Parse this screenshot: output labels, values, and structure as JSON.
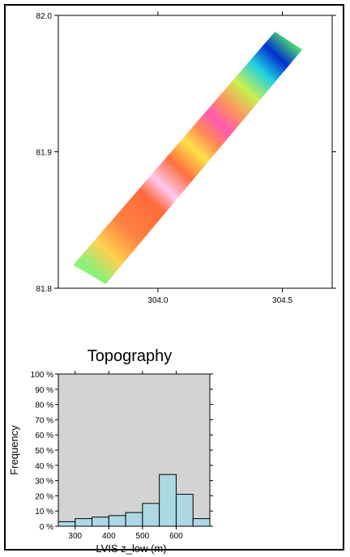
{
  "chart_data": [
    {
      "type": "heatmap",
      "title": "",
      "xlabel": "",
      "ylabel": "",
      "xlim": [
        303.6,
        304.7
      ],
      "ylim": [
        81.8,
        82.0
      ],
      "xticks": [
        304.0,
        304.5
      ],
      "xtick_labels": [
        "304.0",
        "304.5"
      ],
      "yticks": [
        81.8,
        81.9,
        82.0
      ],
      "ytick_labels": [
        "81.8",
        "81.9",
        "82.0"
      ],
      "grid": false,
      "colormap": [
        "#ff55aa",
        "#ffc0f0",
        "#ff8a3d",
        "#ffe23d",
        "#7cf25a",
        "#30e0d0",
        "#2060ff",
        "#0010a0"
      ],
      "swath": {
        "corners_lon_lat": [
          [
            303.66,
            81.817
          ],
          [
            303.79,
            81.803
          ],
          [
            304.58,
            81.975
          ],
          [
            304.47,
            81.988
          ]
        ]
      }
    },
    {
      "type": "bar",
      "title": "Topography",
      "xlabel": "LVIS z_low (m)",
      "ylabel": "Frequency",
      "bin_edges": [
        250,
        300,
        350,
        400,
        450,
        500,
        550,
        600,
        650,
        700
      ],
      "values": [
        3,
        5,
        6,
        7,
        9,
        15,
        34,
        21,
        5
      ],
      "xticks": [
        300,
        400,
        500,
        600
      ],
      "xtick_labels": [
        "300",
        "400",
        "500",
        "600"
      ],
      "yticks": [
        0,
        10,
        20,
        30,
        40,
        50,
        60,
        70,
        80,
        90,
        100
      ],
      "ytick_labels": [
        "0 %",
        "10 %",
        "20 %",
        "30 %",
        "40 %",
        "50 %",
        "60 %",
        "70 %",
        "80 %",
        "90 %",
        "100 %"
      ],
      "xlim": [
        250,
        700
      ],
      "ylim": [
        0,
        100
      ],
      "bar_color": "#add8e6",
      "background_color": "#d3d3d3",
      "grid": false
    }
  ]
}
